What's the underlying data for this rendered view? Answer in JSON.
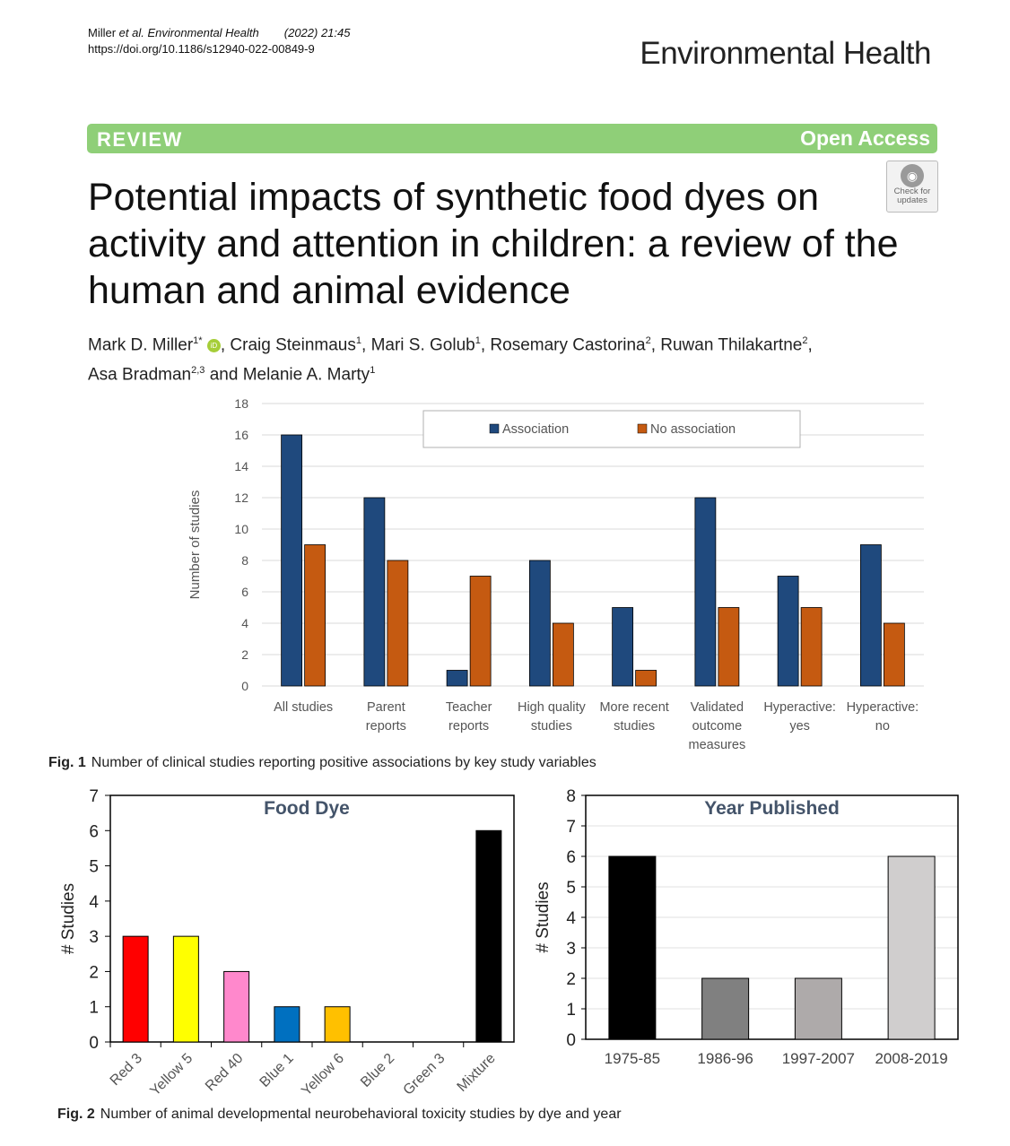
{
  "header": {
    "citation_author": "Miller ",
    "citation_etal": "et al.",
    "citation_journal": " Environmental Health",
    "citation_year": "(2022) 21:45",
    "doi": "https://doi.org/10.1186/s12940-022-00849-9",
    "journal_name": "Environmental Health"
  },
  "banner": {
    "type": "REVIEW",
    "access": "Open Access"
  },
  "updates_badge": {
    "line1": "Check for",
    "line2": "updates"
  },
  "article": {
    "title": "Potential impacts of synthetic food dyes on activity and attention in children: a review of the human and animal evidence",
    "authors": [
      {
        "name": "Mark D. Miller",
        "sup": "1*"
      },
      {
        "name": "Craig Steinmaus",
        "sup": "1"
      },
      {
        "name": "Mari S. Golub",
        "sup": "1"
      },
      {
        "name": "Rosemary Castorina",
        "sup": "2"
      },
      {
        "name": "Ruwan Thilakartne",
        "sup": "2"
      },
      {
        "name": "Asa Bradman",
        "sup": "2,3"
      },
      {
        "name": "Melanie A. Marty",
        "sup": "1"
      }
    ]
  },
  "fig1": {
    "label": "Fig. 1",
    "caption": "Number of clinical studies reporting positive associations by key study variables"
  },
  "fig2": {
    "label": "Fig. 2",
    "caption": "Number of animal developmental neurobehavioral toxicity studies by dye and year"
  },
  "colors": {
    "association": "#1f497d",
    "no_association": "#c55a11",
    "banner": "#8fcf78"
  },
  "chart_data": [
    {
      "type": "bar",
      "categories": [
        [
          "All studies"
        ],
        [
          "Parent",
          "reports"
        ],
        [
          "Teacher",
          "reports"
        ],
        [
          "High quality",
          "studies"
        ],
        [
          "More recent",
          "studies"
        ],
        [
          "Validated",
          "outcome",
          "measures"
        ],
        [
          "Hyperactive:",
          "yes"
        ],
        [
          "Hyperactive:",
          "no"
        ]
      ],
      "series": [
        {
          "name": "Association",
          "values": [
            16,
            12,
            1,
            8,
            5,
            12,
            7,
            9
          ],
          "color": "#1f497d"
        },
        {
          "name": "No association",
          "values": [
            9,
            8,
            7,
            4,
            1,
            5,
            5,
            4
          ],
          "color": "#c55a11"
        }
      ],
      "title": "",
      "xlabel": "",
      "ylabel": "Number of studies",
      "ylim": [
        0,
        18
      ],
      "yticks": [
        0,
        2,
        4,
        6,
        8,
        10,
        12,
        14,
        16,
        18
      ],
      "grid": true,
      "legend": "top-center"
    },
    {
      "type": "bar",
      "title": "Food Dye",
      "categories": [
        "Red 3",
        "Yellow 5",
        "Red 40",
        "Blue 1",
        "Yellow 6",
        "Blue 2",
        "Green 3",
        "Mixture"
      ],
      "values": [
        3,
        3,
        2,
        1,
        1,
        0,
        0,
        6
      ],
      "colors": [
        "#ff0000",
        "#ffff00",
        "#ff88cc",
        "#0070c0",
        "#ffc000",
        "#888888",
        "#00aa00",
        "#000000"
      ],
      "xlabel": "",
      "ylabel": "# Studies",
      "ylim": [
        0,
        7
      ],
      "yticks": [
        0,
        1,
        2,
        3,
        4,
        5,
        6,
        7
      ],
      "grid": false
    },
    {
      "type": "bar",
      "title": "Year Published",
      "categories": [
        "1975-85",
        "1986-96",
        "1997-2007",
        "2008-2019"
      ],
      "values": [
        6,
        2,
        2,
        6
      ],
      "colors": [
        "#000000",
        "#808080",
        "#aeaaaa",
        "#d0cece"
      ],
      "xlabel": "",
      "ylabel": "# Studies",
      "ylim": [
        0,
        8
      ],
      "yticks": [
        0,
        1,
        2,
        3,
        4,
        5,
        6,
        7,
        8
      ],
      "grid": true
    }
  ]
}
